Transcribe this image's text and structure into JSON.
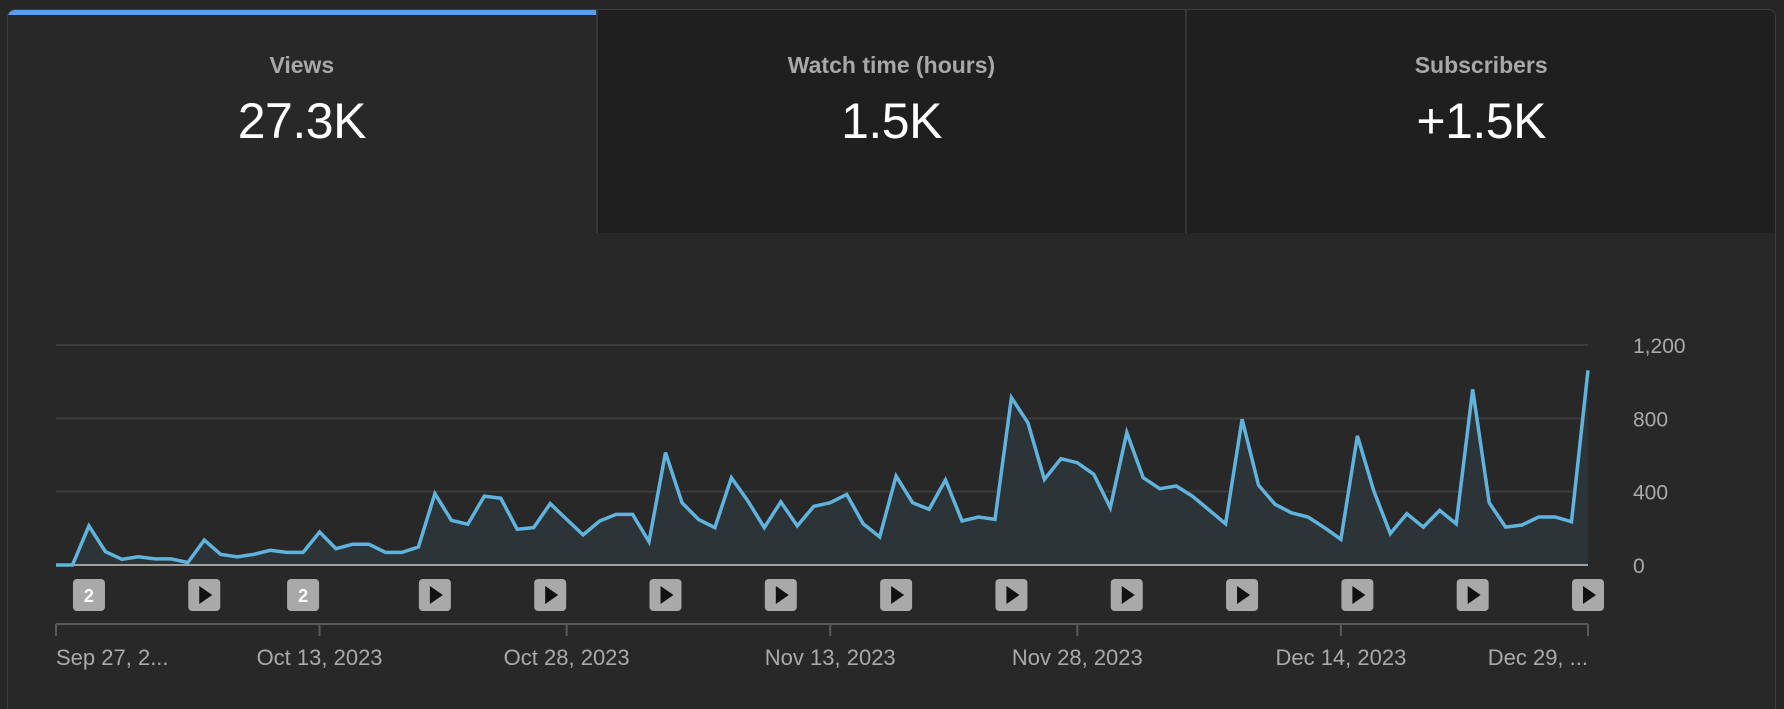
{
  "tabs": [
    {
      "label": "Views",
      "value": "27.3K",
      "active": true
    },
    {
      "label": "Watch time (hours)",
      "value": "1.5K",
      "active": false
    },
    {
      "label": "Subscribers",
      "value": "+1.5K",
      "active": false
    }
  ],
  "colors": {
    "accent": "#5e9cec",
    "line": "#5fb3dc",
    "area": "#2d3438",
    "grid": "#3c3c3c",
    "baseline": "#a0a0a0",
    "marker_bg": "#a9a9a9"
  },
  "markers": [
    {
      "type": "count",
      "label": "2",
      "day": 2
    },
    {
      "type": "play",
      "label": "",
      "day": 9
    },
    {
      "type": "count",
      "label": "2",
      "day": 15
    },
    {
      "type": "play",
      "label": "",
      "day": 23
    },
    {
      "type": "play",
      "label": "",
      "day": 30
    },
    {
      "type": "play",
      "label": "",
      "day": 37
    },
    {
      "type": "play",
      "label": "",
      "day": 44
    },
    {
      "type": "play",
      "label": "",
      "day": 51
    },
    {
      "type": "play",
      "label": "",
      "day": 58
    },
    {
      "type": "play",
      "label": "",
      "day": 65
    },
    {
      "type": "play",
      "label": "",
      "day": 72
    },
    {
      "type": "play",
      "label": "",
      "day": 79
    },
    {
      "type": "play",
      "label": "",
      "day": 86
    },
    {
      "type": "play",
      "label": "",
      "day": 93
    }
  ],
  "chart_data": {
    "type": "line",
    "title": "Views",
    "xlabel": "",
    "ylabel": "",
    "x_start": "Sep 27, 2023",
    "x_end": "Dec 29, 2023",
    "ylim": [
      0,
      1200
    ],
    "yticks": [
      {
        "value": 0,
        "label": "0"
      },
      {
        "value": 400,
        "label": "400"
      },
      {
        "value": 800,
        "label": "800"
      },
      {
        "value": 1200,
        "label": "1,200"
      }
    ],
    "xticks": [
      {
        "day": 0,
        "label": "Sep 27, 2..."
      },
      {
        "day": 16,
        "label": "Oct 13, 2023"
      },
      {
        "day": 31,
        "label": "Oct 28, 2023"
      },
      {
        "day": 47,
        "label": "Nov 13, 2023"
      },
      {
        "day": 62,
        "label": "Nov 28, 2023"
      },
      {
        "day": 78,
        "label": "Dec 14, 2023"
      },
      {
        "day": 93,
        "label": "Dec 29, ..."
      }
    ],
    "grid": true,
    "legend": "none",
    "series": [
      {
        "name": "Views",
        "values": [
          0,
          0,
          213,
          73,
          31,
          45,
          33,
          33,
          13,
          136,
          58,
          45,
          58,
          80,
          69,
          69,
          180,
          89,
          113,
          113,
          69,
          69,
          98,
          389,
          244,
          222,
          376,
          364,
          195,
          204,
          335,
          249,
          164,
          240,
          276,
          276,
          127,
          613,
          340,
          249,
          204,
          476,
          349,
          204,
          344,
          213,
          320,
          340,
          385,
          225,
          153,
          485,
          340,
          304,
          464,
          240,
          262,
          249,
          913,
          776,
          467,
          580,
          558,
          495,
          313,
          722,
          476,
          416,
          431,
          375,
          300,
          225,
          795,
          436,
          331,
          285,
          262,
          204,
          140,
          704,
          404,
          171,
          280,
          207,
          298,
          225,
          958,
          340,
          207,
          218,
          262,
          262,
          236,
          1062
        ]
      }
    ]
  }
}
